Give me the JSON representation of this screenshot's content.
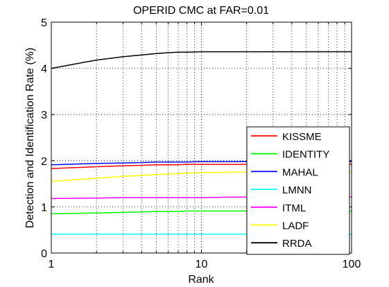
{
  "chart_data": {
    "type": "line",
    "title": "OPERID CMC at FAR=0.01",
    "xlabel": "Rank",
    "ylabel": "Detection and Identification Rate (%)",
    "xscale": "log",
    "xlim": [
      1,
      100
    ],
    "ylim": [
      0,
      5
    ],
    "xticks": [
      1,
      10,
      100
    ],
    "xtick_labels": [
      "1",
      "10",
      "100"
    ],
    "yticks": [
      0,
      1,
      2,
      3,
      4,
      5
    ],
    "ytick_labels": [
      "0",
      "1",
      "2",
      "3",
      "4",
      "5"
    ],
    "grid": true,
    "legend_position": "bottom-right",
    "x": [
      1,
      2,
      3,
      4,
      5,
      6,
      7,
      8,
      10,
      15,
      20,
      30,
      50,
      100
    ],
    "series": [
      {
        "name": "KISSME",
        "color": "#ff0000",
        "values": [
          1.83,
          1.87,
          1.89,
          1.9,
          1.91,
          1.91,
          1.91,
          1.92,
          1.92,
          1.92,
          1.92,
          1.92,
          1.92,
          1.92
        ]
      },
      {
        "name": "IDENTITY",
        "color": "#00ff00",
        "values": [
          0.85,
          0.87,
          0.88,
          0.89,
          0.9,
          0.9,
          0.9,
          0.91,
          0.91,
          0.91,
          0.91,
          0.91,
          0.91,
          0.91
        ]
      },
      {
        "name": "MAHAL",
        "color": "#0000ff",
        "values": [
          1.91,
          1.94,
          1.95,
          1.96,
          1.97,
          1.97,
          1.97,
          1.97,
          1.98,
          1.98,
          1.98,
          1.98,
          1.98,
          1.98
        ]
      },
      {
        "name": "LMNN",
        "color": "#00ffff",
        "values": [
          0.41,
          0.41,
          0.41,
          0.41,
          0.41,
          0.41,
          0.41,
          0.41,
          0.41,
          0.41,
          0.41,
          0.41,
          0.41,
          0.41
        ]
      },
      {
        "name": "ITML",
        "color": "#ff00ff",
        "values": [
          1.18,
          1.19,
          1.2,
          1.2,
          1.2,
          1.2,
          1.2,
          1.2,
          1.2,
          1.21,
          1.21,
          1.21,
          1.21,
          1.21
        ]
      },
      {
        "name": "LADF",
        "color": "#ffff00",
        "values": [
          1.55,
          1.62,
          1.66,
          1.68,
          1.7,
          1.71,
          1.72,
          1.73,
          1.74,
          1.75,
          1.75,
          1.75,
          1.76,
          1.76
        ]
      },
      {
        "name": "RRDA",
        "color": "#000000",
        "values": [
          4.0,
          4.18,
          4.25,
          4.29,
          4.32,
          4.34,
          4.35,
          4.35,
          4.36,
          4.36,
          4.36,
          4.36,
          4.36,
          4.36
        ]
      }
    ]
  }
}
